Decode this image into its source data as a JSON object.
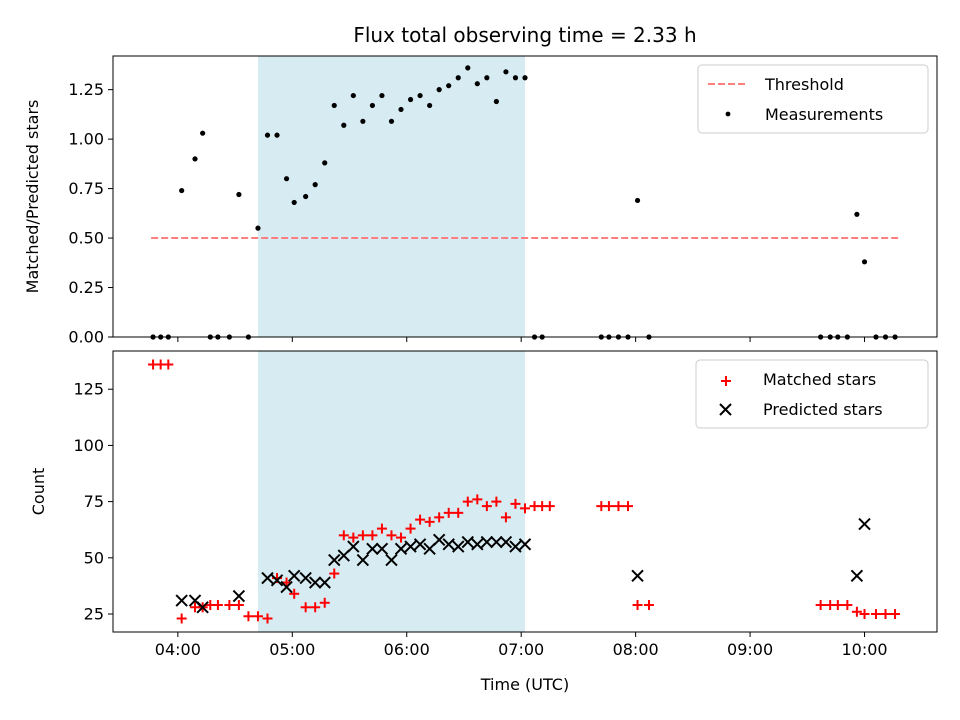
{
  "chart_data": [
    {
      "type": "scatter",
      "panel": "top",
      "title": "Flux total observing time = 2.33 h",
      "xlabel": "",
      "ylabel": "Matched/Predicted stars",
      "ylim": [
        0,
        1.42
      ],
      "xlim": [
        "03:26",
        "10:38"
      ],
      "yticks": [
        0.0,
        0.25,
        0.5,
        0.75,
        1.0,
        1.25
      ],
      "ytick_labels": [
        "0.00",
        "0.25",
        "0.50",
        "0.75",
        "1.00",
        "1.25"
      ],
      "shaded_interval": [
        "04:42",
        "07:02"
      ],
      "legend_position": "top-right",
      "threshold": {
        "name": "Threshold",
        "y": 0.5,
        "x_start": "03:46",
        "x_end": "10:18",
        "color": "#ff7f7f",
        "style": "dashed"
      },
      "series": [
        {
          "name": "Measurements",
          "color": "#000000",
          "marker": "dot",
          "points": [
            [
              "03:47",
              0.0
            ],
            [
              "03:51",
              0.0
            ],
            [
              "03:55",
              0.0
            ],
            [
              "04:02",
              0.74
            ],
            [
              "04:09",
              0.9
            ],
            [
              "04:13",
              1.03
            ],
            [
              "04:17",
              0.0
            ],
            [
              "04:21",
              0.0
            ],
            [
              "04:27",
              0.0
            ],
            [
              "04:32",
              0.72
            ],
            [
              "04:37",
              0.0
            ],
            [
              "04:42",
              0.55
            ],
            [
              "04:47",
              1.02
            ],
            [
              "04:52",
              1.02
            ],
            [
              "04:57",
              0.8
            ],
            [
              "05:01",
              0.68
            ],
            [
              "05:07",
              0.71
            ],
            [
              "05:12",
              0.77
            ],
            [
              "05:17",
              0.88
            ],
            [
              "05:22",
              1.17
            ],
            [
              "05:27",
              1.07
            ],
            [
              "05:32",
              1.22
            ],
            [
              "05:37",
              1.09
            ],
            [
              "05:42",
              1.17
            ],
            [
              "05:47",
              1.22
            ],
            [
              "05:52",
              1.09
            ],
            [
              "05:57",
              1.15
            ],
            [
              "06:02",
              1.2
            ],
            [
              "06:07",
              1.22
            ],
            [
              "06:12",
              1.17
            ],
            [
              "06:17",
              1.25
            ],
            [
              "06:22",
              1.27
            ],
            [
              "06:27",
              1.31
            ],
            [
              "06:32",
              1.36
            ],
            [
              "06:37",
              1.28
            ],
            [
              "06:42",
              1.31
            ],
            [
              "06:47",
              1.19
            ],
            [
              "06:52",
              1.34
            ],
            [
              "06:57",
              1.31
            ],
            [
              "07:02",
              1.31
            ],
            [
              "07:07",
              0.0
            ],
            [
              "07:11",
              0.0
            ],
            [
              "07:42",
              0.0
            ],
            [
              "07:46",
              0.0
            ],
            [
              "07:51",
              0.0
            ],
            [
              "07:56",
              0.0
            ],
            [
              "08:01",
              0.69
            ],
            [
              "08:07",
              0.0
            ],
            [
              "09:37",
              0.0
            ],
            [
              "09:42",
              0.0
            ],
            [
              "09:46",
              0.0
            ],
            [
              "09:51",
              0.0
            ],
            [
              "09:56",
              0.62
            ],
            [
              "10:00",
              0.38
            ],
            [
              "10:06",
              0.0
            ],
            [
              "10:11",
              0.0
            ],
            [
              "10:16",
              0.0
            ]
          ]
        }
      ]
    },
    {
      "type": "scatter",
      "panel": "bottom",
      "title": "",
      "xlabel": "Time (UTC)",
      "ylabel": "Count",
      "ylim": [
        17,
        142
      ],
      "xlim": [
        "03:26",
        "10:38"
      ],
      "yticks": [
        25,
        50,
        75,
        100,
        125
      ],
      "ytick_labels": [
        "25",
        "50",
        "75",
        "100",
        "125"
      ],
      "xticks": [
        "04:00",
        "05:00",
        "06:00",
        "07:00",
        "08:00",
        "09:00",
        "10:00"
      ],
      "xtick_labels": [
        "04:00",
        "05:00",
        "06:00",
        "07:00",
        "08:00",
        "09:00",
        "10:00"
      ],
      "shaded_interval": [
        "04:42",
        "07:02"
      ],
      "legend_position": "top-right",
      "series": [
        {
          "name": "Matched stars",
          "color": "#ff0000",
          "marker": "plus",
          "points": [
            [
              "03:47",
              136
            ],
            [
              "03:51",
              136
            ],
            [
              "03:55",
              136
            ],
            [
              "04:02",
              23
            ],
            [
              "04:09",
              28
            ],
            [
              "04:13",
              28
            ],
            [
              "04:17",
              29
            ],
            [
              "04:21",
              29
            ],
            [
              "04:27",
              29
            ],
            [
              "04:32",
              29
            ],
            [
              "04:37",
              24
            ],
            [
              "04:42",
              24
            ],
            [
              "04:47",
              23
            ],
            [
              "04:52",
              41
            ],
            [
              "04:57",
              39
            ],
            [
              "05:01",
              34
            ],
            [
              "05:07",
              28
            ],
            [
              "05:12",
              28
            ],
            [
              "05:17",
              30
            ],
            [
              "05:22",
              43
            ],
            [
              "05:27",
              60
            ],
            [
              "05:32",
              59
            ],
            [
              "05:37",
              60
            ],
            [
              "05:42",
              60
            ],
            [
              "05:47",
              63
            ],
            [
              "05:52",
              60
            ],
            [
              "05:57",
              59
            ],
            [
              "06:02",
              63
            ],
            [
              "06:07",
              67
            ],
            [
              "06:12",
              66
            ],
            [
              "06:17",
              68
            ],
            [
              "06:22",
              70
            ],
            [
              "06:27",
              70
            ],
            [
              "06:32",
              75
            ],
            [
              "06:37",
              76
            ],
            [
              "06:42",
              73
            ],
            [
              "06:47",
              75
            ],
            [
              "06:52",
              68
            ],
            [
              "06:57",
              74
            ],
            [
              "07:02",
              72
            ],
            [
              "07:07",
              73
            ],
            [
              "07:11",
              73
            ],
            [
              "07:15",
              73
            ],
            [
              "07:42",
              73
            ],
            [
              "07:46",
              73
            ],
            [
              "07:51",
              73
            ],
            [
              "07:56",
              73
            ],
            [
              "08:01",
              29
            ],
            [
              "08:07",
              29
            ],
            [
              "09:37",
              29
            ],
            [
              "09:42",
              29
            ],
            [
              "09:46",
              29
            ],
            [
              "09:51",
              29
            ],
            [
              "09:56",
              26
            ],
            [
              "10:00",
              25
            ],
            [
              "10:06",
              25
            ],
            [
              "10:11",
              25
            ],
            [
              "10:16",
              25
            ]
          ]
        },
        {
          "name": "Predicted stars",
          "color": "#000000",
          "marker": "x",
          "points": [
            [
              "04:02",
              31
            ],
            [
              "04:09",
              31
            ],
            [
              "04:13",
              28
            ],
            [
              "04:32",
              33
            ],
            [
              "04:47",
              41
            ],
            [
              "04:52",
              40
            ],
            [
              "04:57",
              37
            ],
            [
              "05:01",
              42
            ],
            [
              "05:07",
              41
            ],
            [
              "05:12",
              39
            ],
            [
              "05:17",
              39
            ],
            [
              "05:22",
              49
            ],
            [
              "05:27",
              51
            ],
            [
              "05:32",
              55
            ],
            [
              "05:37",
              49
            ],
            [
              "05:42",
              54
            ],
            [
              "05:47",
              54
            ],
            [
              "05:52",
              49
            ],
            [
              "05:57",
              54
            ],
            [
              "06:02",
              55
            ],
            [
              "06:07",
              56
            ],
            [
              "06:12",
              54
            ],
            [
              "06:17",
              58
            ],
            [
              "06:22",
              56
            ],
            [
              "06:27",
              55
            ],
            [
              "06:32",
              57
            ],
            [
              "06:37",
              56
            ],
            [
              "06:42",
              57
            ],
            [
              "06:47",
              57
            ],
            [
              "06:52",
              57
            ],
            [
              "06:57",
              55
            ],
            [
              "07:02",
              56
            ],
            [
              "08:01",
              42
            ],
            [
              "09:56",
              42
            ],
            [
              "10:00",
              65
            ]
          ]
        }
      ]
    }
  ],
  "colors": {
    "shade": "#add8e6",
    "threshold": "#ff7f7f",
    "matched": "#ff0000",
    "predicted": "#000000",
    "measurements": "#000000"
  }
}
